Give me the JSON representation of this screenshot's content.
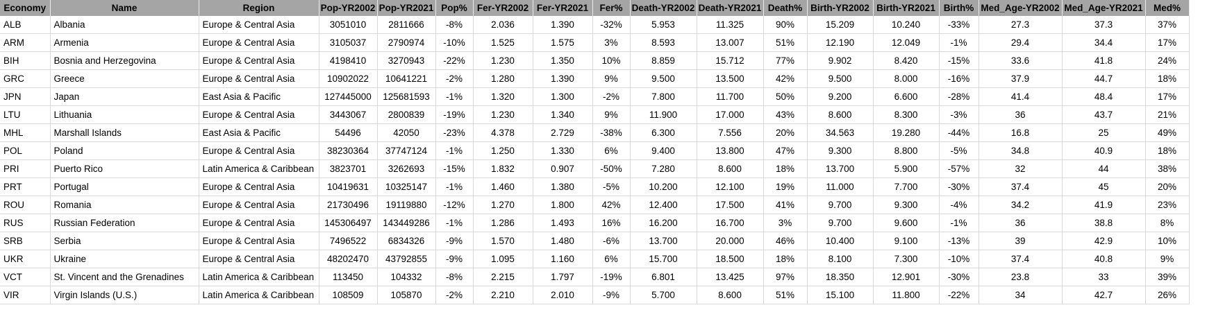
{
  "columns": [
    {
      "key": "economy",
      "label": "Economy",
      "align": "left"
    },
    {
      "key": "name",
      "label": "Name",
      "align": "left"
    },
    {
      "key": "region",
      "label": "Region",
      "align": "left"
    },
    {
      "key": "pop2002",
      "label": "Pop-YR2002",
      "align": "center"
    },
    {
      "key": "pop2021",
      "label": "Pop-YR2021",
      "align": "center"
    },
    {
      "key": "popPct",
      "label": "Pop%",
      "align": "center"
    },
    {
      "key": "fer2002",
      "label": "Fer-YR2002",
      "align": "center"
    },
    {
      "key": "fer2021",
      "label": "Fer-YR2021",
      "align": "center"
    },
    {
      "key": "ferPct",
      "label": "Fer%",
      "align": "center"
    },
    {
      "key": "death2002",
      "label": "Death-YR2002",
      "align": "center"
    },
    {
      "key": "death2021",
      "label": "Death-YR2021",
      "align": "center"
    },
    {
      "key": "deathPct",
      "label": "Death%",
      "align": "center"
    },
    {
      "key": "birth2002",
      "label": "Birth-YR2002",
      "align": "center"
    },
    {
      "key": "birth2021",
      "label": "Birth-YR2021",
      "align": "center"
    },
    {
      "key": "birthPct",
      "label": "Birth%",
      "align": "center"
    },
    {
      "key": "medAge2002",
      "label": "Med_Age-YR2002",
      "align": "center"
    },
    {
      "key": "medAge2021",
      "label": "Med_Age-YR2021",
      "align": "center"
    },
    {
      "key": "medPct",
      "label": "Med%",
      "align": "center"
    }
  ],
  "rows": [
    [
      "ALB",
      "Albania",
      "Europe & Central Asia",
      "3051010",
      "2811666",
      "-8%",
      "2.036",
      "1.390",
      "-32%",
      "5.953",
      "11.325",
      "90%",
      "15.209",
      "10.240",
      "-33%",
      "27.3",
      "37.3",
      "37%"
    ],
    [
      "ARM",
      "Armenia",
      "Europe & Central Asia",
      "3105037",
      "2790974",
      "-10%",
      "1.525",
      "1.575",
      "3%",
      "8.593",
      "13.007",
      "51%",
      "12.190",
      "12.049",
      "-1%",
      "29.4",
      "34.4",
      "17%"
    ],
    [
      "BIH",
      "Bosnia and Herzegovina",
      "Europe & Central Asia",
      "4198410",
      "3270943",
      "-22%",
      "1.230",
      "1.350",
      "10%",
      "8.859",
      "15.712",
      "77%",
      "9.902",
      "8.420",
      "-15%",
      "33.6",
      "41.8",
      "24%"
    ],
    [
      "GRC",
      "Greece",
      "Europe & Central Asia",
      "10902022",
      "10641221",
      "-2%",
      "1.280",
      "1.390",
      "9%",
      "9.500",
      "13.500",
      "42%",
      "9.500",
      "8.000",
      "-16%",
      "37.9",
      "44.7",
      "18%"
    ],
    [
      "JPN",
      "Japan",
      "East Asia & Pacific",
      "127445000",
      "125681593",
      "-1%",
      "1.320",
      "1.300",
      "-2%",
      "7.800",
      "11.700",
      "50%",
      "9.200",
      "6.600",
      "-28%",
      "41.4",
      "48.4",
      "17%"
    ],
    [
      "LTU",
      "Lithuania",
      "Europe & Central Asia",
      "3443067",
      "2800839",
      "-19%",
      "1.230",
      "1.340",
      "9%",
      "11.900",
      "17.000",
      "43%",
      "8.600",
      "8.300",
      "-3%",
      "36",
      "43.7",
      "21%"
    ],
    [
      "MHL",
      "Marshall Islands",
      "East Asia & Pacific",
      "54496",
      "42050",
      "-23%",
      "4.378",
      "2.729",
      "-38%",
      "6.300",
      "7.556",
      "20%",
      "34.563",
      "19.280",
      "-44%",
      "16.8",
      "25",
      "49%"
    ],
    [
      "POL",
      "Poland",
      "Europe & Central Asia",
      "38230364",
      "37747124",
      "-1%",
      "1.250",
      "1.330",
      "6%",
      "9.400",
      "13.800",
      "47%",
      "9.300",
      "8.800",
      "-5%",
      "34.8",
      "40.9",
      "18%"
    ],
    [
      "PRI",
      "Puerto Rico",
      "Latin America & Caribbean",
      "3823701",
      "3262693",
      "-15%",
      "1.832",
      "0.907",
      "-50%",
      "7.280",
      "8.600",
      "18%",
      "13.700",
      "5.900",
      "-57%",
      "32",
      "44",
      "38%"
    ],
    [
      "PRT",
      "Portugal",
      "Europe & Central Asia",
      "10419631",
      "10325147",
      "-1%",
      "1.460",
      "1.380",
      "-5%",
      "10.200",
      "12.100",
      "19%",
      "11.000",
      "7.700",
      "-30%",
      "37.4",
      "45",
      "20%"
    ],
    [
      "ROU",
      "Romania",
      "Europe & Central Asia",
      "21730496",
      "19119880",
      "-12%",
      "1.270",
      "1.800",
      "42%",
      "12.400",
      "17.500",
      "41%",
      "9.700",
      "9.300",
      "-4%",
      "34.2",
      "41.9",
      "23%"
    ],
    [
      "RUS",
      "Russian Federation",
      "Europe & Central Asia",
      "145306497",
      "143449286",
      "-1%",
      "1.286",
      "1.493",
      "16%",
      "16.200",
      "16.700",
      "3%",
      "9.700",
      "9.600",
      "-1%",
      "36",
      "38.8",
      "8%"
    ],
    [
      "SRB",
      "Serbia",
      "Europe & Central Asia",
      "7496522",
      "6834326",
      "-9%",
      "1.570",
      "1.480",
      "-6%",
      "13.700",
      "20.000",
      "46%",
      "10.400",
      "9.100",
      "-13%",
      "39",
      "42.9",
      "10%"
    ],
    [
      "UKR",
      "Ukraine",
      "Europe & Central Asia",
      "48202470",
      "43792855",
      "-9%",
      "1.095",
      "1.160",
      "6%",
      "15.700",
      "18.500",
      "18%",
      "8.100",
      "7.300",
      "-10%",
      "37.4",
      "40.8",
      "9%"
    ],
    [
      "VCT",
      "St. Vincent and the Grenadines",
      "Latin America & Caribbean",
      "113450",
      "104332",
      "-8%",
      "2.215",
      "1.797",
      "-19%",
      "6.801",
      "13.425",
      "97%",
      "18.350",
      "12.901",
      "-30%",
      "23.8",
      "33",
      "39%"
    ],
    [
      "VIR",
      "Virgin Islands (U.S.)",
      "Latin America & Caribbean",
      "108509",
      "105870",
      "-2%",
      "2.210",
      "2.010",
      "-9%",
      "5.700",
      "8.600",
      "51%",
      "15.100",
      "11.800",
      "-22%",
      "34",
      "42.7",
      "26%"
    ]
  ],
  "colors": {
    "header_bg": "#a5a5a5",
    "gridline": "#d9d9d9"
  }
}
